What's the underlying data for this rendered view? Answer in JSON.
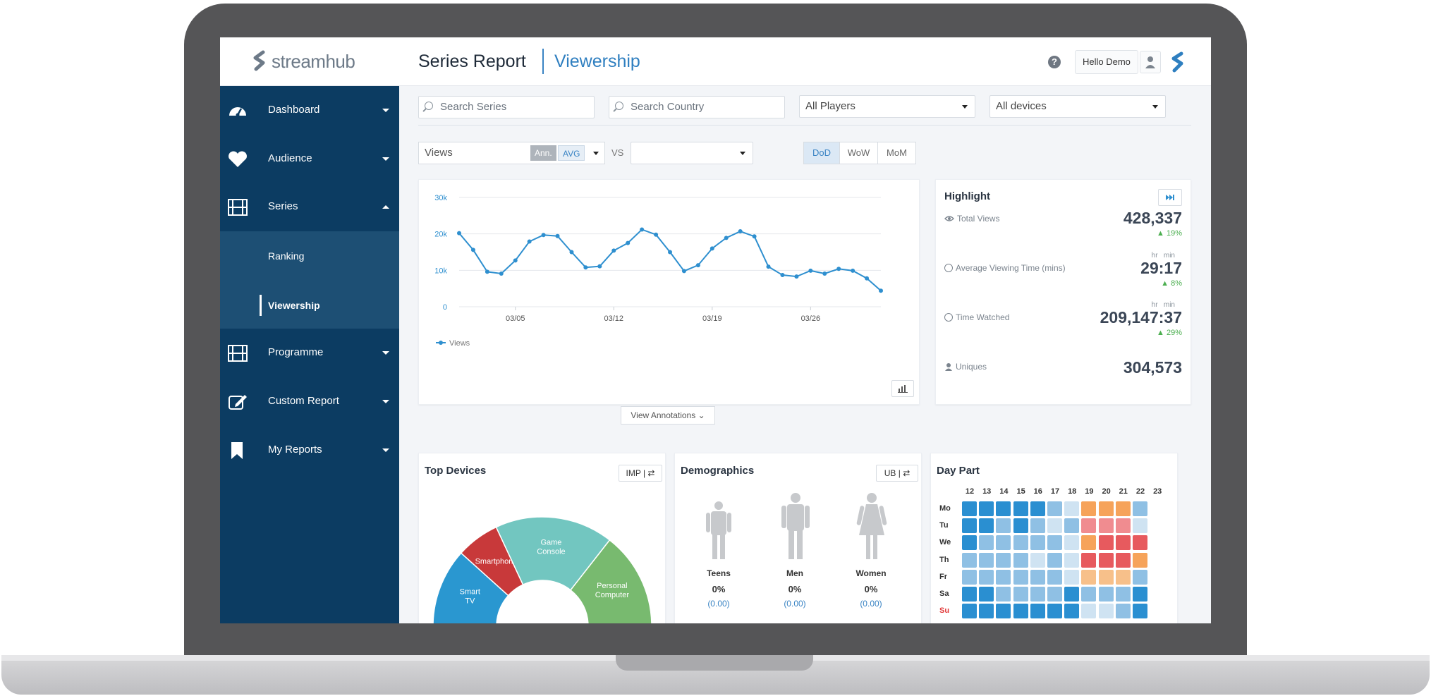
{
  "app": {
    "logo_text": "streamhub",
    "title": "Series Report",
    "subtitle": "Viewership"
  },
  "header": {
    "help_icon": "?",
    "user_greeting": "Hello Demo"
  },
  "sidebar": {
    "items": [
      {
        "label": "Dashboard",
        "icon": "dashboard-icon"
      },
      {
        "label": "Audience",
        "icon": "heart-icon"
      },
      {
        "label": "Series",
        "icon": "film-icon"
      },
      {
        "label": "Programme",
        "icon": "film-icon"
      },
      {
        "label": "Custom Report",
        "icon": "edit-icon"
      },
      {
        "label": "My Reports",
        "icon": "bookmark-icon"
      }
    ],
    "subitems": [
      "Ranking",
      "Viewership"
    ]
  },
  "filters": {
    "search_series": "Search Series",
    "search_country": "Search Country",
    "players": "All Players",
    "devices": "All devices"
  },
  "metric": {
    "value": "Views",
    "ann": "Ann.",
    "avg": "AVG",
    "vs": "VS"
  },
  "compare": [
    "DoD",
    "WoW",
    "MoM"
  ],
  "chart_data": {
    "type": "line",
    "title": "",
    "xlabel": "",
    "ylabel": "",
    "x_ticks": [
      "03/05",
      "03/12",
      "03/19",
      "03/26"
    ],
    "y_ticks": [
      "30k",
      "20k",
      "10k",
      "0"
    ],
    "ylim": [
      0,
      30000
    ],
    "grid": true,
    "legend": "bottom-left",
    "series": [
      {
        "name": "Views",
        "color": "#2e8fcf",
        "values": [
          20200,
          15600,
          9600,
          9100,
          12700,
          17900,
          19700,
          19400,
          15000,
          10800,
          11100,
          15400,
          17500,
          21200,
          19800,
          15000,
          9800,
          11400,
          16000,
          18900,
          20700,
          19300,
          11000,
          8700,
          8300,
          9900,
          9100,
          10400,
          9900,
          7800,
          4400
        ]
      }
    ]
  },
  "view_annotations": "View Annotations",
  "highlight": {
    "title": "Highlight",
    "rows": [
      {
        "label": "Total Views",
        "value": "428,337",
        "delta": "▲ 19%"
      },
      {
        "label": "Average Viewing Time (mins)",
        "value": "29:17",
        "delta": "▲ 8%",
        "units": "hr   min"
      },
      {
        "label": "Time Watched",
        "value": "209,147:37",
        "delta": "▲ 29%",
        "units": "hr   min"
      },
      {
        "label": "Uniques",
        "value": "304,573"
      }
    ]
  },
  "top_devices": {
    "title": "Top Devices",
    "button": "IMP | ⇄",
    "segments": [
      {
        "label": "Smart TV",
        "color": "#2a97d0"
      },
      {
        "label": "Smartphone",
        "color": "#c8393a"
      },
      {
        "label": "Game Console",
        "color": "#72c6c0"
      },
      {
        "label": "Personal Computer",
        "color": "#78ba6f"
      }
    ]
  },
  "demographics": {
    "title": "Demographics",
    "button": "UB | ⇄",
    "groups": [
      {
        "name": "Teens",
        "pct": "0%",
        "sub": "(0.00)"
      },
      {
        "name": "Men",
        "pct": "0%",
        "sub": "(0.00)"
      },
      {
        "name": "Women",
        "pct": "0%",
        "sub": "(0.00)"
      }
    ]
  },
  "day_part": {
    "title": "Day Part",
    "hours": [
      "12",
      "13",
      "14",
      "15",
      "16",
      "17",
      "18",
      "19",
      "20",
      "21",
      "22",
      "23"
    ],
    "days": [
      "Mo",
      "Tu",
      "We",
      "Th",
      "Fr",
      "Sa",
      "Su"
    ],
    "colors": {
      "d": "#2a8fd1",
      "m": "#8fc0e4",
      "l": "#cfe3f2",
      "o": "#f6a35a",
      "p": "#f08c90",
      "r": "#e75a5e",
      "y": "#f7c08a"
    },
    "grid": [
      "dddddmlooom",
      "ddmdmlmpppl",
      "dmmmmmlorrr",
      "mmmmlmlrrro",
      "mmmmmmlyyym",
      "ddmmmmdmmmd",
      "dddddddllmd"
    ]
  }
}
